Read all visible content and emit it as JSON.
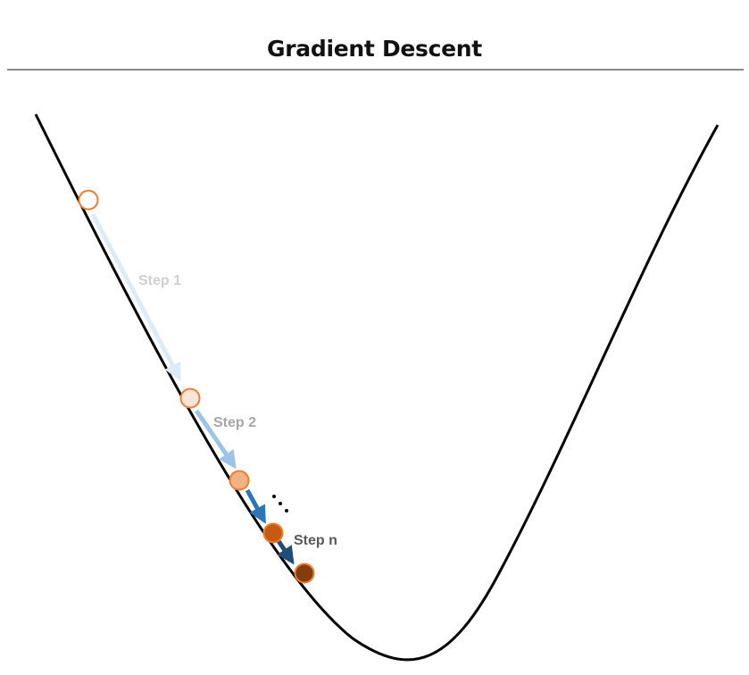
{
  "title": "Gradient Descent",
  "steps": [
    {
      "label": "Step 1",
      "color": "#d0d0d0"
    },
    {
      "label": "Step 2",
      "color": "#a6a6a6"
    },
    {
      "label": "Step n",
      "color": "#595959"
    }
  ],
  "ellipsis": "...",
  "colors": {
    "curve": "#000000",
    "arrow_light": "#ddebf7",
    "arrow_mid": "#9dc3e6",
    "arrow_dark": "#2e75b6",
    "arrow_darkest": "#1f4e79",
    "point_outline": "#ed7d31",
    "point_1_fill": "#ffffff",
    "point_2_fill": "#fbe5d6",
    "point_3_fill": "#f4b183",
    "point_4_fill": "#c55a11",
    "point_5_fill": "#843c0c"
  }
}
